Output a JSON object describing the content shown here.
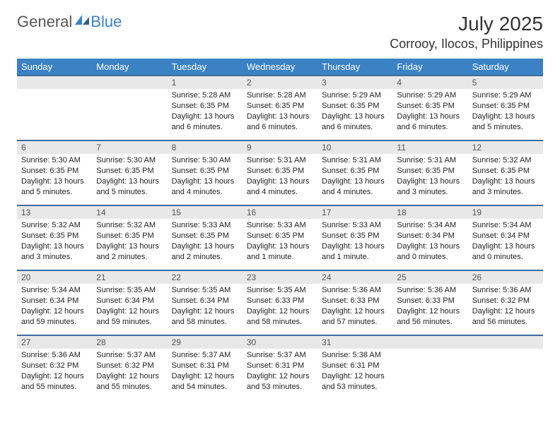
{
  "logo": {
    "text1": "General",
    "text2": "Blue"
  },
  "title": {
    "month_year": "July 2025",
    "location": "Corrooy, Ilocos, Philippines"
  },
  "colors": {
    "header_bg": "#3b82c4",
    "header_fg": "#ffffff",
    "daynum_bg": "#e8e8e8",
    "daynum_fg": "#555555",
    "row_border": "#3b6ea0",
    "text": "#222222",
    "logo_gray": "#555555",
    "logo_blue": "#3b82c4",
    "background": "#ffffff"
  },
  "day_headers": [
    "Sunday",
    "Monday",
    "Tuesday",
    "Wednesday",
    "Thursday",
    "Friday",
    "Saturday"
  ],
  "weeks": [
    [
      {
        "day": "",
        "sunrise": "",
        "sunset": "",
        "daylight": ""
      },
      {
        "day": "",
        "sunrise": "",
        "sunset": "",
        "daylight": ""
      },
      {
        "day": "1",
        "sunrise": "Sunrise: 5:28 AM",
        "sunset": "Sunset: 6:35 PM",
        "daylight": "Daylight: 13 hours and 6 minutes."
      },
      {
        "day": "2",
        "sunrise": "Sunrise: 5:28 AM",
        "sunset": "Sunset: 6:35 PM",
        "daylight": "Daylight: 13 hours and 6 minutes."
      },
      {
        "day": "3",
        "sunrise": "Sunrise: 5:29 AM",
        "sunset": "Sunset: 6:35 PM",
        "daylight": "Daylight: 13 hours and 6 minutes."
      },
      {
        "day": "4",
        "sunrise": "Sunrise: 5:29 AM",
        "sunset": "Sunset: 6:35 PM",
        "daylight": "Daylight: 13 hours and 6 minutes."
      },
      {
        "day": "5",
        "sunrise": "Sunrise: 5:29 AM",
        "sunset": "Sunset: 6:35 PM",
        "daylight": "Daylight: 13 hours and 5 minutes."
      }
    ],
    [
      {
        "day": "6",
        "sunrise": "Sunrise: 5:30 AM",
        "sunset": "Sunset: 6:35 PM",
        "daylight": "Daylight: 13 hours and 5 minutes."
      },
      {
        "day": "7",
        "sunrise": "Sunrise: 5:30 AM",
        "sunset": "Sunset: 6:35 PM",
        "daylight": "Daylight: 13 hours and 5 minutes."
      },
      {
        "day": "8",
        "sunrise": "Sunrise: 5:30 AM",
        "sunset": "Sunset: 6:35 PM",
        "daylight": "Daylight: 13 hours and 4 minutes."
      },
      {
        "day": "9",
        "sunrise": "Sunrise: 5:31 AM",
        "sunset": "Sunset: 6:35 PM",
        "daylight": "Daylight: 13 hours and 4 minutes."
      },
      {
        "day": "10",
        "sunrise": "Sunrise: 5:31 AM",
        "sunset": "Sunset: 6:35 PM",
        "daylight": "Daylight: 13 hours and 4 minutes."
      },
      {
        "day": "11",
        "sunrise": "Sunrise: 5:31 AM",
        "sunset": "Sunset: 6:35 PM",
        "daylight": "Daylight: 13 hours and 3 minutes."
      },
      {
        "day": "12",
        "sunrise": "Sunrise: 5:32 AM",
        "sunset": "Sunset: 6:35 PM",
        "daylight": "Daylight: 13 hours and 3 minutes."
      }
    ],
    [
      {
        "day": "13",
        "sunrise": "Sunrise: 5:32 AM",
        "sunset": "Sunset: 6:35 PM",
        "daylight": "Daylight: 13 hours and 3 minutes."
      },
      {
        "day": "14",
        "sunrise": "Sunrise: 5:32 AM",
        "sunset": "Sunset: 6:35 PM",
        "daylight": "Daylight: 13 hours and 2 minutes."
      },
      {
        "day": "15",
        "sunrise": "Sunrise: 5:33 AM",
        "sunset": "Sunset: 6:35 PM",
        "daylight": "Daylight: 13 hours and 2 minutes."
      },
      {
        "day": "16",
        "sunrise": "Sunrise: 5:33 AM",
        "sunset": "Sunset: 6:35 PM",
        "daylight": "Daylight: 13 hours and 1 minute."
      },
      {
        "day": "17",
        "sunrise": "Sunrise: 5:33 AM",
        "sunset": "Sunset: 6:35 PM",
        "daylight": "Daylight: 13 hours and 1 minute."
      },
      {
        "day": "18",
        "sunrise": "Sunrise: 5:34 AM",
        "sunset": "Sunset: 6:34 PM",
        "daylight": "Daylight: 13 hours and 0 minutes."
      },
      {
        "day": "19",
        "sunrise": "Sunrise: 5:34 AM",
        "sunset": "Sunset: 6:34 PM",
        "daylight": "Daylight: 13 hours and 0 minutes."
      }
    ],
    [
      {
        "day": "20",
        "sunrise": "Sunrise: 5:34 AM",
        "sunset": "Sunset: 6:34 PM",
        "daylight": "Daylight: 12 hours and 59 minutes."
      },
      {
        "day": "21",
        "sunrise": "Sunrise: 5:35 AM",
        "sunset": "Sunset: 6:34 PM",
        "daylight": "Daylight: 12 hours and 59 minutes."
      },
      {
        "day": "22",
        "sunrise": "Sunrise: 5:35 AM",
        "sunset": "Sunset: 6:34 PM",
        "daylight": "Daylight: 12 hours and 58 minutes."
      },
      {
        "day": "23",
        "sunrise": "Sunrise: 5:35 AM",
        "sunset": "Sunset: 6:33 PM",
        "daylight": "Daylight: 12 hours and 58 minutes."
      },
      {
        "day": "24",
        "sunrise": "Sunrise: 5:36 AM",
        "sunset": "Sunset: 6:33 PM",
        "daylight": "Daylight: 12 hours and 57 minutes."
      },
      {
        "day": "25",
        "sunrise": "Sunrise: 5:36 AM",
        "sunset": "Sunset: 6:33 PM",
        "daylight": "Daylight: 12 hours and 56 minutes."
      },
      {
        "day": "26",
        "sunrise": "Sunrise: 5:36 AM",
        "sunset": "Sunset: 6:32 PM",
        "daylight": "Daylight: 12 hours and 56 minutes."
      }
    ],
    [
      {
        "day": "27",
        "sunrise": "Sunrise: 5:36 AM",
        "sunset": "Sunset: 6:32 PM",
        "daylight": "Daylight: 12 hours and 55 minutes."
      },
      {
        "day": "28",
        "sunrise": "Sunrise: 5:37 AM",
        "sunset": "Sunset: 6:32 PM",
        "daylight": "Daylight: 12 hours and 55 minutes."
      },
      {
        "day": "29",
        "sunrise": "Sunrise: 5:37 AM",
        "sunset": "Sunset: 6:31 PM",
        "daylight": "Daylight: 12 hours and 54 minutes."
      },
      {
        "day": "30",
        "sunrise": "Sunrise: 5:37 AM",
        "sunset": "Sunset: 6:31 PM",
        "daylight": "Daylight: 12 hours and 53 minutes."
      },
      {
        "day": "31",
        "sunrise": "Sunrise: 5:38 AM",
        "sunset": "Sunset: 6:31 PM",
        "daylight": "Daylight: 12 hours and 53 minutes."
      },
      {
        "day": "",
        "sunrise": "",
        "sunset": "",
        "daylight": ""
      },
      {
        "day": "",
        "sunrise": "",
        "sunset": "",
        "daylight": ""
      }
    ]
  ]
}
